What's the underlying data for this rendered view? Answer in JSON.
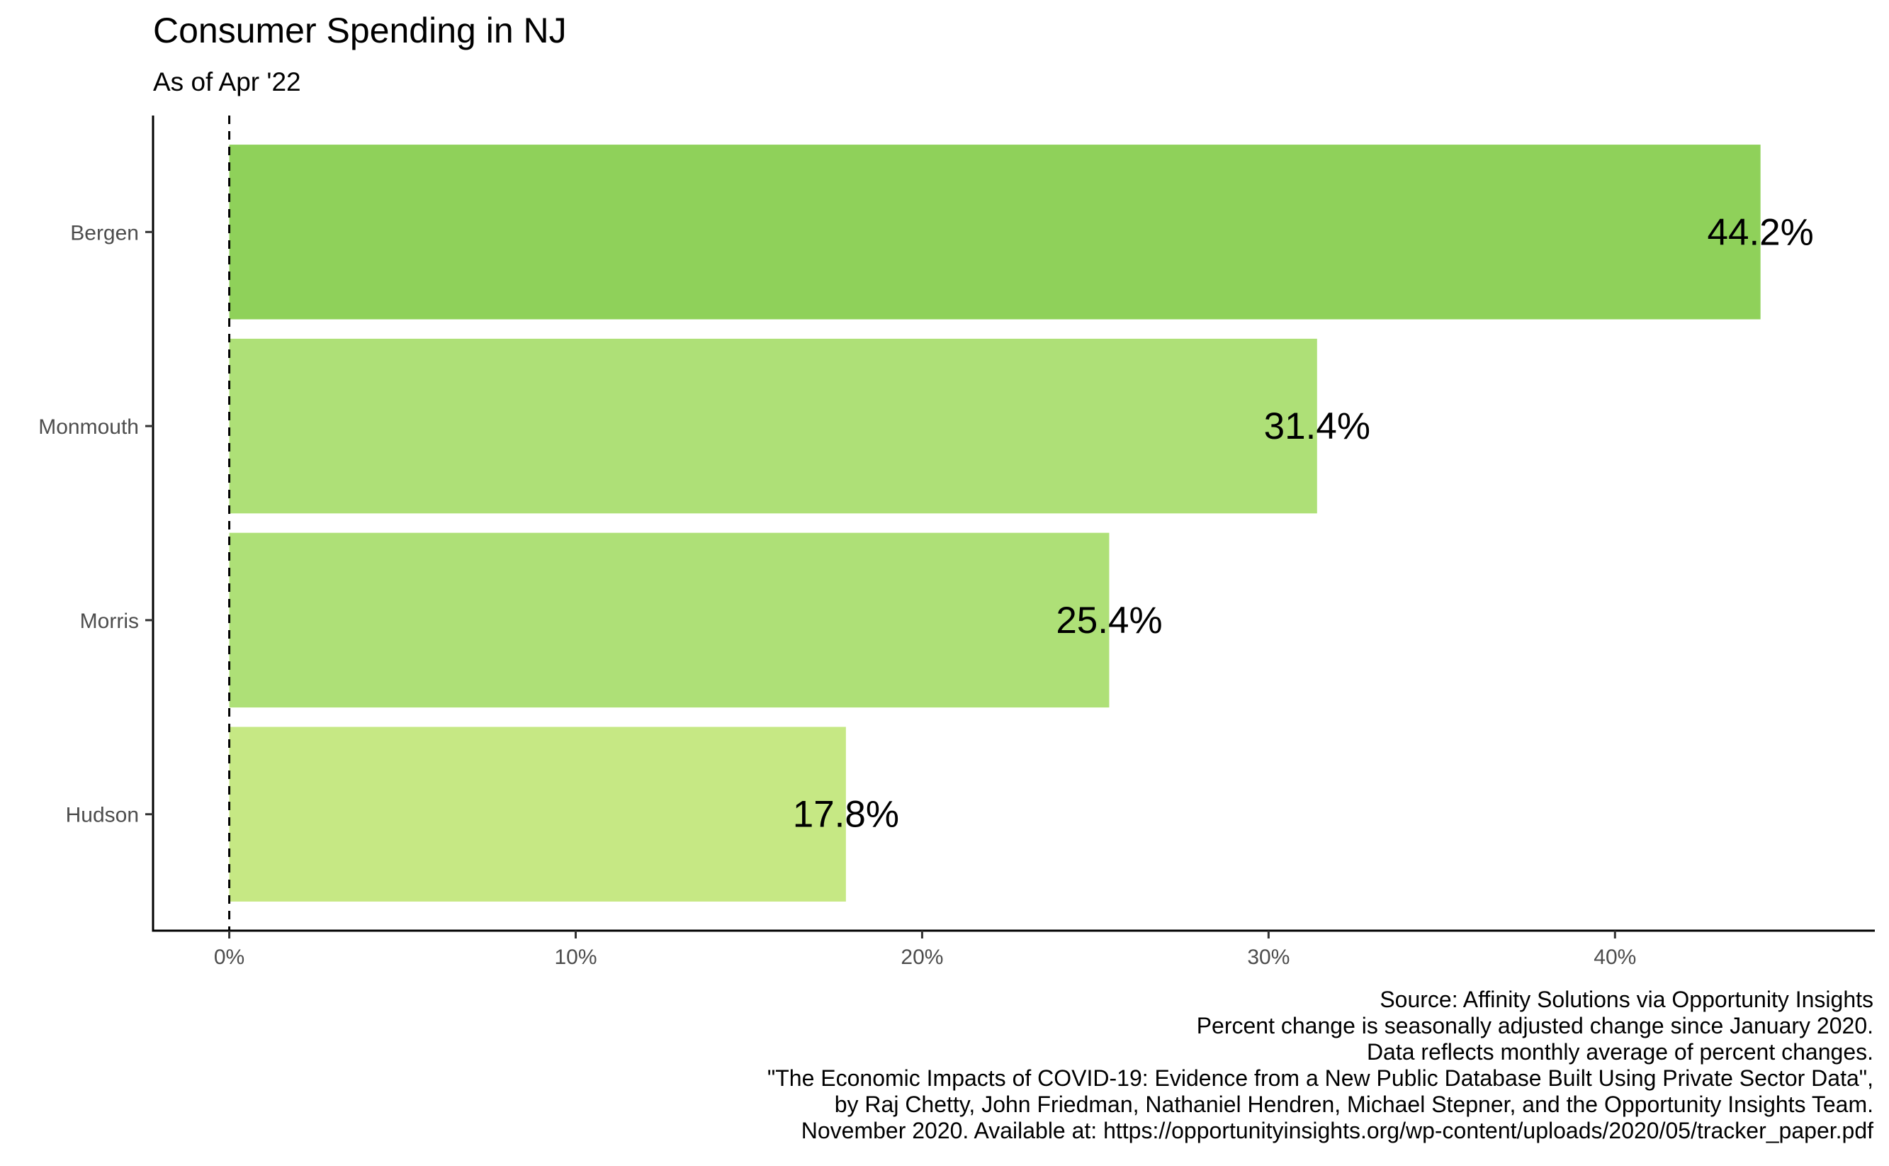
{
  "chart_data": {
    "type": "bar",
    "orientation": "horizontal",
    "title": "Consumer Spending in NJ",
    "subtitle": "As of Apr '22",
    "categories": [
      "Bergen",
      "Monmouth",
      "Morris",
      "Hudson"
    ],
    "values": [
      44.2,
      31.4,
      25.4,
      17.8
    ],
    "value_labels": [
      "44.2%",
      "31.4%",
      "25.4%",
      "17.8%"
    ],
    "bar_colors": [
      "#8fd15a",
      "#aee077",
      "#aee077",
      "#c6e884"
    ],
    "xlim": [
      -2.2,
      47.5
    ],
    "x_ticks": [
      0,
      10,
      20,
      30,
      40
    ],
    "x_tick_labels": [
      "0%",
      "10%",
      "20%",
      "30%",
      "40%"
    ],
    "reference_line": {
      "x": 0,
      "style": "dashed"
    },
    "xlabel": "",
    "ylabel": "",
    "grid": false,
    "legend": "none",
    "caption": [
      "Source: Affinity Solutions via Opportunity Insights",
      "Percent change is seasonally adjusted change since January 2020.",
      "Data reflects monthly average of percent changes.",
      "\"The Economic Impacts of COVID-19: Evidence from a New Public Database Built Using Private Sector Data\",",
      "by Raj Chetty, John Friedman, Nathaniel Hendren, Michael Stepner, and the Opportunity Insights Team.",
      "November 2020. Available at: https://opportunityinsights.org/wp-content/uploads/2020/05/tracker_paper.pdf"
    ]
  }
}
